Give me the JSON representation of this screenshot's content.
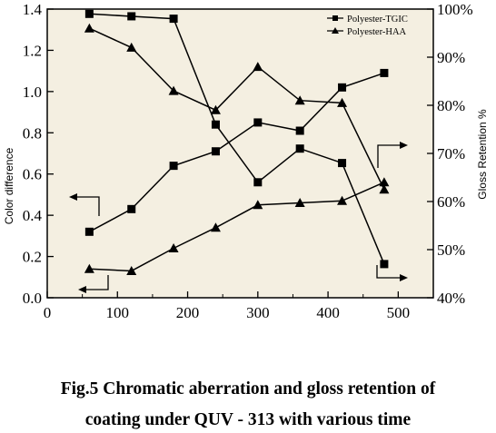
{
  "chart_data": {
    "type": "line",
    "title": "",
    "xlabel": "",
    "ylabel_left": "Color difference",
    "ylabel_right": "Gloss Retention %",
    "xlim": [
      0,
      550
    ],
    "ylim_left": [
      0,
      1.4
    ],
    "ylim_right": [
      40,
      100
    ],
    "x_ticks": [
      "0",
      "100",
      "200",
      "300",
      "400",
      "500"
    ],
    "y_left_ticks": [
      "0.0",
      "0.2",
      "0.4",
      "0.6",
      "0.8",
      "1.0",
      "1.2",
      "1.4"
    ],
    "y_right_ticks": [
      "40%",
      "50%",
      "60%",
      "70%",
      "80%",
      "90%",
      "100%"
    ],
    "grid": false,
    "legend_position": "top-right",
    "background_color": "#f4efe1",
    "x": [
      60,
      120,
      180,
      240,
      300,
      360,
      420,
      480
    ],
    "series": [
      {
        "name": "Polyester-TGIC",
        "marker": "square",
        "metric": "color difference",
        "axis": "left",
        "values": [
          0.32,
          0.43,
          0.64,
          0.71,
          0.85,
          0.81,
          1.02,
          1.09
        ]
      },
      {
        "name": "Polyester-HAA",
        "marker": "triangle",
        "metric": "color difference",
        "axis": "left",
        "values": [
          0.14,
          0.13,
          0.24,
          0.34,
          0.45,
          0.46,
          0.47,
          0.56
        ]
      },
      {
        "name": "Polyester-TGIC",
        "marker": "square",
        "metric": "gloss retention",
        "axis": "right",
        "values": [
          99,
          98.5,
          98,
          76,
          64,
          71,
          68,
          47
        ]
      },
      {
        "name": "Polyester-HAA",
        "marker": "triangle",
        "metric": "gloss retention",
        "axis": "right",
        "values": [
          96,
          92,
          83,
          79,
          88,
          81,
          80.5,
          62.5
        ]
      }
    ],
    "legend": [
      {
        "label": "Polyester-TGIC",
        "marker": "square"
      },
      {
        "label": "Polyester-HAA",
        "marker": "triangle"
      }
    ]
  },
  "caption": {
    "line1": "Fig.5   Chromatic aberration and gloss retention of",
    "line2": "coating under QUV - 313 with various time"
  }
}
